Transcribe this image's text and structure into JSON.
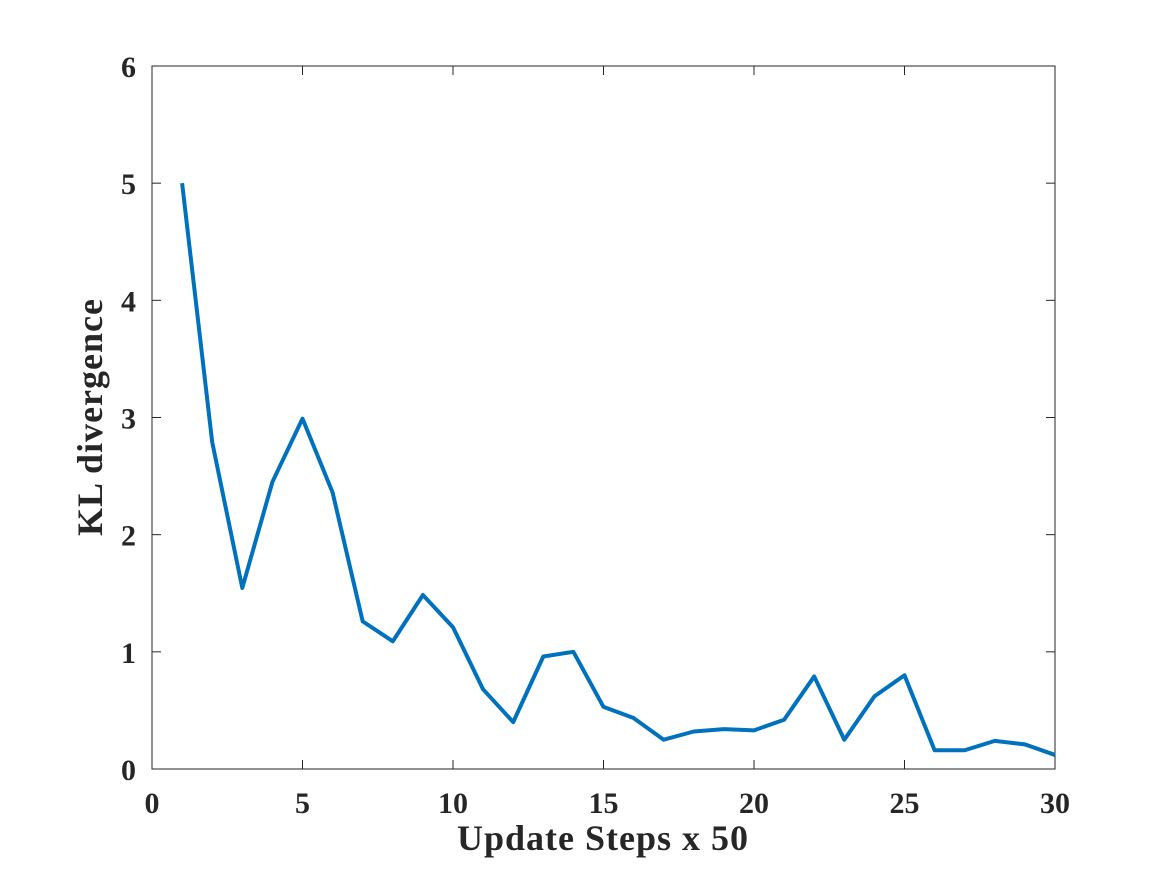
{
  "chart_data": {
    "type": "line",
    "xlabel": "Update Steps x 50",
    "ylabel": "KL divergence",
    "x": [
      1,
      2,
      3,
      4,
      5,
      6,
      7,
      8,
      9,
      10,
      11,
      12,
      13,
      14,
      15,
      16,
      17,
      18,
      19,
      20,
      21,
      22,
      23,
      24,
      25,
      26,
      27,
      28,
      29,
      30
    ],
    "series": [
      {
        "name": "KL divergence",
        "color": "#0072bd",
        "values": [
          5.0,
          2.79,
          1.545,
          2.45,
          2.99,
          2.36,
          1.26,
          1.09,
          1.485,
          1.21,
          0.68,
          0.4,
          0.96,
          1.0,
          0.53,
          0.435,
          0.25,
          0.32,
          0.34,
          0.33,
          0.42,
          0.79,
          0.25,
          0.62,
          0.8,
          0.16,
          0.16,
          0.24,
          0.21,
          0.12
        ]
      }
    ],
    "xlim": [
      0,
      30
    ],
    "xticks": [
      0,
      5,
      10,
      15,
      20,
      25,
      30
    ],
    "ylim": [
      0,
      6
    ],
    "yticks": [
      0,
      1,
      2,
      3,
      4,
      5,
      6
    ],
    "grid": false
  }
}
